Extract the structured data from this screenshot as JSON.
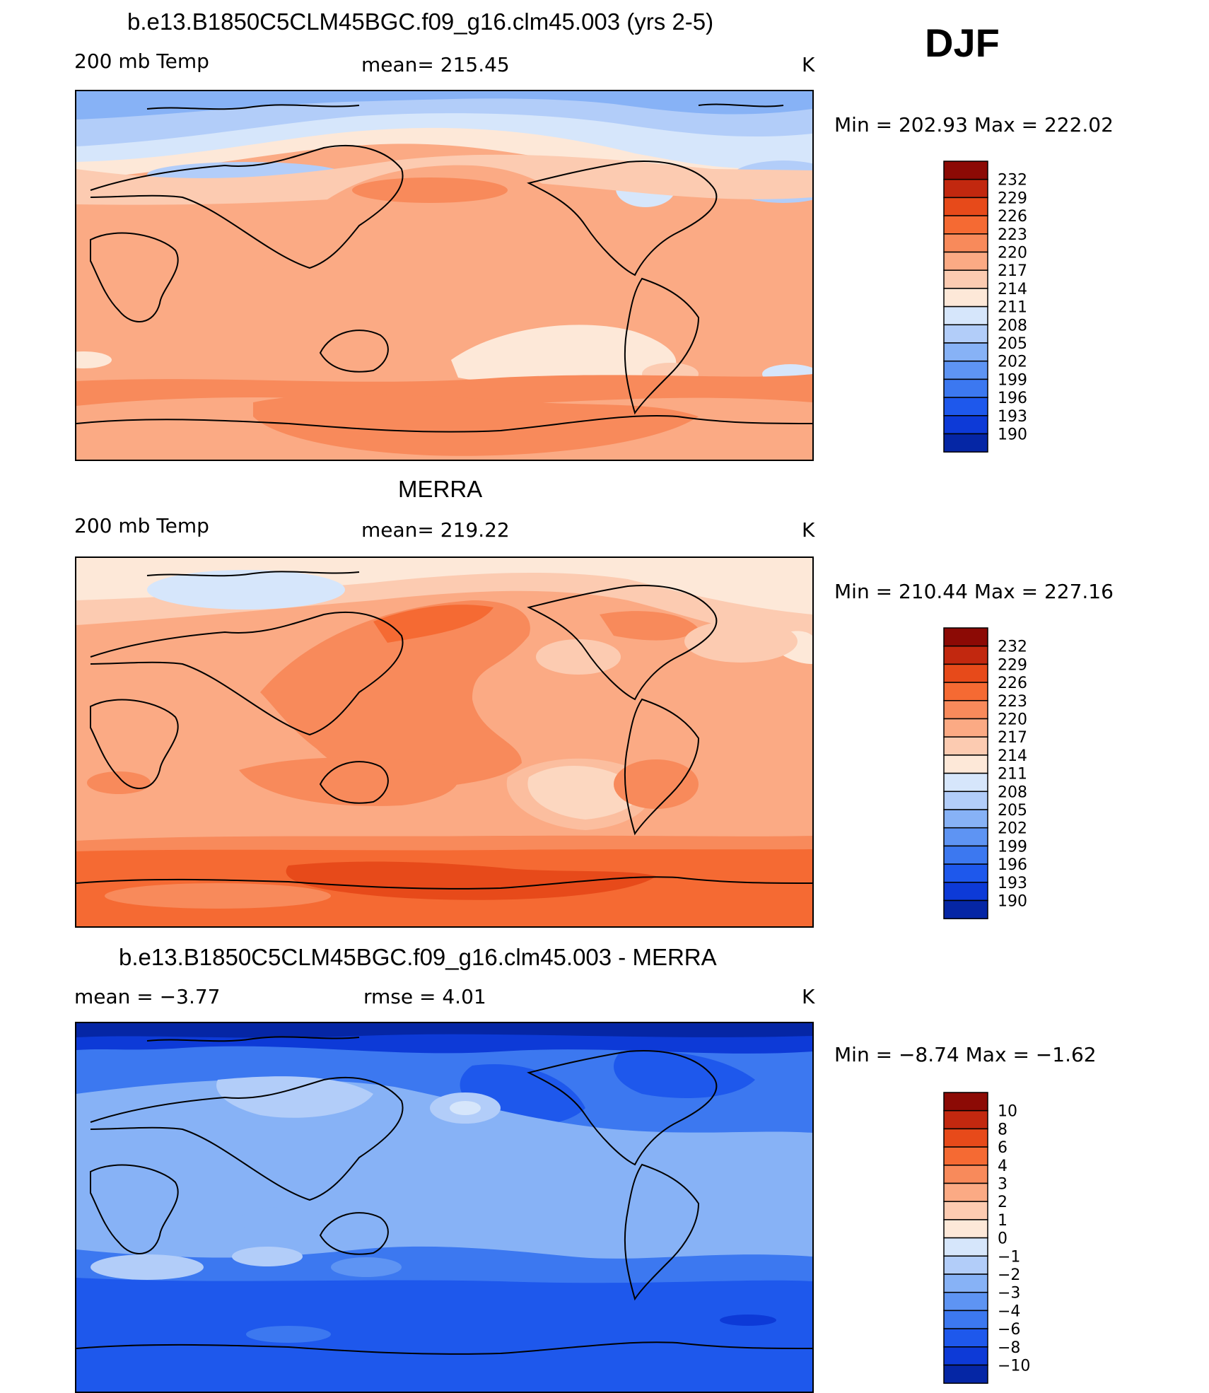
{
  "season": "DJF",
  "colors": {
    "temp": [
      "#08006b",
      "#0526a5",
      "#0d3ad7",
      "#1e58ec",
      "#3c78f0",
      "#5e94f3",
      "#87b2f6",
      "#b2cdf9",
      "#d6e6fb",
      "#fde8d8",
      "#fccbb1",
      "#fbaa84",
      "#f88a5b",
      "#f56a33",
      "#e74a1a",
      "#c2280f",
      "#8c0a05"
    ],
    "diff": [
      "#08006b",
      "#0526a5",
      "#0d3ad7",
      "#1e58ec",
      "#3c78f0",
      "#5e94f3",
      "#87b2f6",
      "#b2cdf9",
      "#d6e6fb",
      "#fde8d8",
      "#fccbb1",
      "#fbaa84",
      "#f88a5b",
      "#f56a33",
      "#e74a1a",
      "#c2280f",
      "#8c0a05"
    ],
    "coast": "#000000"
  },
  "panels": [
    {
      "title": "b.e13.B1850C5CLM45BGC.f09_g16.clm45.003 (yrs 2-5)",
      "left_label": "200 mb Temp",
      "center_label": "mean= 215.45",
      "units": "K",
      "minmax": "Min = 202.93 Max = 222.02",
      "levels": [
        "232",
        "229",
        "226",
        "223",
        "220",
        "217",
        "214",
        "211",
        "208",
        "205",
        "202",
        "199",
        "196",
        "193",
        "190"
      ]
    },
    {
      "title": "MERRA",
      "left_label": "200 mb Temp",
      "center_label": "mean= 219.22",
      "units": "K",
      "minmax": "Min = 210.44 Max = 227.16",
      "levels": [
        "232",
        "229",
        "226",
        "223",
        "220",
        "217",
        "214",
        "211",
        "208",
        "205",
        "202",
        "199",
        "196",
        "193",
        "190"
      ]
    },
    {
      "title": "b.e13.B1850C5CLM45BGC.f09_g16.clm45.003 - MERRA",
      "left_label": "mean =  −3.77",
      "center_label": "rmse =    4.01",
      "units": "K",
      "minmax": "Min =  −8.74 Max =  −1.62",
      "levels": [
        "10",
        "8",
        "6",
        "4",
        "3",
        "2",
        "1",
        "0",
        "−1",
        "−2",
        "−3",
        "−4",
        "−6",
        "−8",
        "−10"
      ]
    }
  ],
  "chart_data": [
    {
      "type": "heatmap",
      "title": "b.e13.B1850C5CLM45BGC.f09_g16.clm45.003 (yrs 2-5)",
      "variable": "200 mb Temp",
      "units": "K",
      "mean": 215.45,
      "min": 202.93,
      "max": 222.02,
      "contour_levels": [
        190,
        193,
        196,
        199,
        202,
        205,
        208,
        211,
        214,
        217,
        220,
        223,
        226,
        229,
        232
      ],
      "x": "longitude 0-360 (centered 180)",
      "y": "latitude -90 to 90"
    },
    {
      "type": "heatmap",
      "title": "MERRA",
      "variable": "200 mb Temp",
      "units": "K",
      "mean": 219.22,
      "min": 210.44,
      "max": 227.16,
      "contour_levels": [
        190,
        193,
        196,
        199,
        202,
        205,
        208,
        211,
        214,
        217,
        220,
        223,
        226,
        229,
        232
      ]
    },
    {
      "type": "heatmap",
      "title": "b.e13.B1850C5CLM45BGC.f09_g16.clm45.003 - MERRA",
      "units": "K",
      "mean": -3.77,
      "rmse": 4.01,
      "min": -8.74,
      "max": -1.62,
      "contour_levels": [
        -10,
        -8,
        -6,
        -4,
        -3,
        -2,
        -1,
        0,
        1,
        2,
        3,
        4,
        6,
        8,
        10
      ]
    }
  ]
}
